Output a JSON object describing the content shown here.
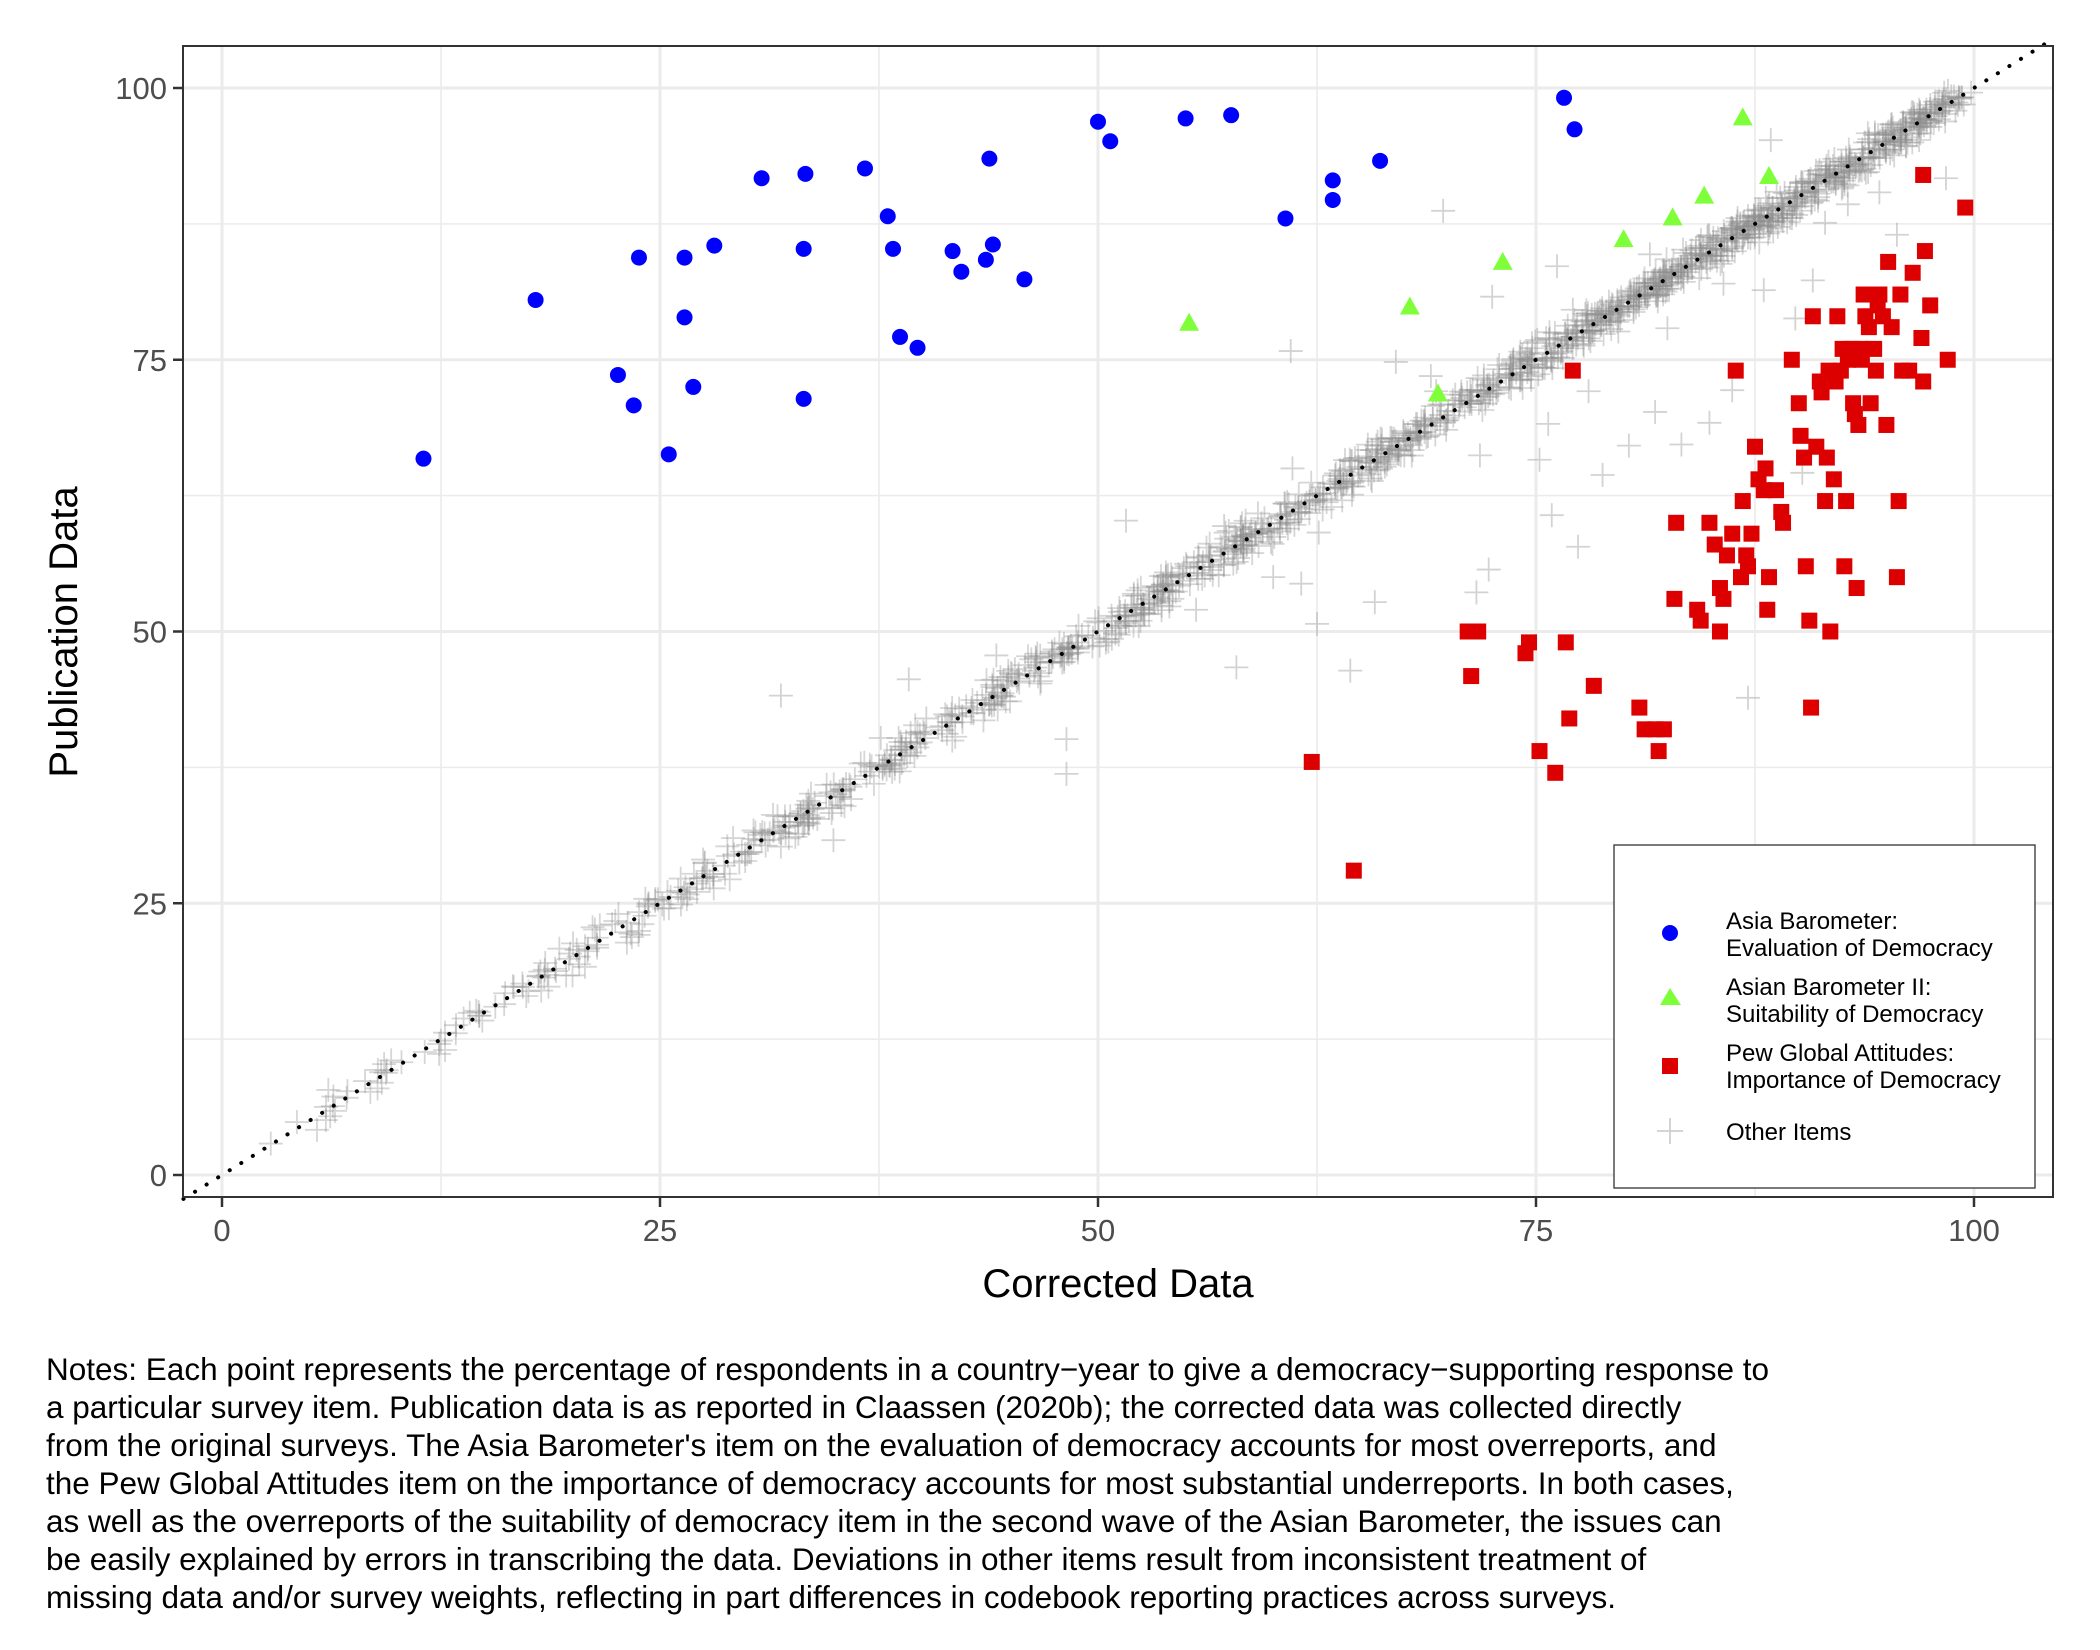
{
  "chart_data": {
    "type": "scatter",
    "title": "",
    "xlabel": "Corrected Data",
    "ylabel": "Publication Data",
    "xlim": [
      -2.2,
      104.5
    ],
    "ylim": [
      -2.0,
      103.9
    ],
    "x_ticks": [
      0,
      25,
      50,
      75,
      100
    ],
    "y_ticks": [
      0,
      25,
      50,
      75,
      100
    ],
    "x_tick_labels": [
      "0",
      "25",
      "50",
      "75",
      "100"
    ],
    "y_tick_labels": [
      "0",
      "25",
      "50",
      "75",
      "100"
    ],
    "grid": true,
    "reference_line": {
      "type": "identity",
      "style": "dotted",
      "color": "#000000"
    },
    "legend": {
      "placement": "bottom-right",
      "entries": [
        {
          "label_line1": "Asia Barometer:",
          "label_line2": "Evaluation of Democracy",
          "marker": "circle",
          "color": "#0000ff"
        },
        {
          "label_line1": "Asian Barometer II:",
          "label_line2": "Suitability of Democracy",
          "marker": "triangle",
          "color": "#7fff3a"
        },
        {
          "label_line1": "Pew Global Attitudes:",
          "label_line2": "Importance of Democracy",
          "marker": "square",
          "color": "#dd0000"
        },
        {
          "label_line1": "Other Items",
          "label_line2": "",
          "marker": "plus",
          "color": "#9e9e9e"
        }
      ]
    },
    "series": [
      {
        "name": "Asia Barometer: Evaluation of Democracy",
        "marker": "circle",
        "color": "#0000ff",
        "points": [
          [
            11.5,
            65.9
          ],
          [
            17.9,
            80.5
          ],
          [
            22.6,
            73.6
          ],
          [
            23.5,
            70.8
          ],
          [
            23.8,
            84.4
          ],
          [
            25.5,
            66.3
          ],
          [
            26.4,
            84.4
          ],
          [
            26.4,
            78.9
          ],
          [
            26.9,
            72.5
          ],
          [
            28.1,
            85.5
          ],
          [
            30.8,
            91.7
          ],
          [
            33.3,
            92.1
          ],
          [
            33.2,
            85.2
          ],
          [
            33.2,
            71.4
          ],
          [
            36.7,
            92.6
          ],
          [
            38.0,
            88.2
          ],
          [
            38.3,
            85.2
          ],
          [
            38.7,
            77.1
          ],
          [
            39.7,
            76.1
          ],
          [
            41.7,
            85.0
          ],
          [
            42.2,
            83.1
          ],
          [
            43.6,
            84.2
          ],
          [
            43.8,
            93.5
          ],
          [
            44.0,
            85.6
          ],
          [
            45.8,
            82.4
          ],
          [
            50.0,
            96.9
          ],
          [
            50.7,
            95.1
          ],
          [
            55.0,
            97.2
          ],
          [
            57.6,
            97.5
          ],
          [
            60.7,
            88.0
          ],
          [
            63.4,
            89.7
          ],
          [
            63.4,
            91.5
          ],
          [
            66.1,
            93.3
          ],
          [
            76.6,
            99.1
          ],
          [
            77.2,
            96.2
          ]
        ]
      },
      {
        "name": "Asian Barometer II: Suitability of Democracy",
        "marker": "triangle",
        "color": "#7fff3a",
        "points": [
          [
            55.2,
            78.4
          ],
          [
            67.8,
            79.9
          ],
          [
            69.4,
            71.9
          ],
          [
            73.1,
            84.0
          ],
          [
            80.0,
            86.1
          ],
          [
            82.8,
            88.1
          ],
          [
            84.6,
            90.1
          ],
          [
            86.8,
            97.3
          ],
          [
            88.3,
            91.9
          ]
        ]
      },
      {
        "name": "Pew Global Attitudes: Importance of Democracy",
        "marker": "square",
        "color": "#dd0000",
        "points": [
          [
            62.2,
            38.0
          ],
          [
            64.6,
            28.0
          ],
          [
            71.1,
            50.0
          ],
          [
            71.3,
            45.9
          ],
          [
            71.7,
            50.0
          ],
          [
            74.4,
            48.0
          ],
          [
            74.6,
            49.0
          ],
          [
            75.2,
            39.0
          ],
          [
            76.1,
            37.0
          ],
          [
            76.7,
            49.0
          ],
          [
            76.9,
            42.0
          ],
          [
            77.1,
            74.0
          ],
          [
            78.3,
            45.0
          ],
          [
            80.9,
            43.0
          ],
          [
            81.2,
            41.0
          ],
          [
            81.8,
            41.0
          ],
          [
            82.0,
            39.0
          ],
          [
            82.3,
            41.0
          ],
          [
            82.9,
            53.0
          ],
          [
            83.0,
            60.0
          ],
          [
            84.2,
            52.0
          ],
          [
            84.4,
            51.0
          ],
          [
            84.9,
            60.0
          ],
          [
            85.2,
            58.0
          ],
          [
            85.5,
            54.0
          ],
          [
            85.5,
            50.0
          ],
          [
            85.7,
            53.0
          ],
          [
            85.9,
            57.0
          ],
          [
            86.2,
            59.0
          ],
          [
            86.4,
            74.0
          ],
          [
            86.7,
            55.0
          ],
          [
            86.8,
            62.0
          ],
          [
            87.0,
            57.0
          ],
          [
            87.1,
            56.0
          ],
          [
            87.3,
            59.0
          ],
          [
            87.5,
            67.0
          ],
          [
            87.7,
            64.0
          ],
          [
            88.0,
            63.0
          ],
          [
            88.1,
            65.0
          ],
          [
            88.2,
            52.0
          ],
          [
            88.3,
            55.0
          ],
          [
            88.7,
            63.0
          ],
          [
            89.0,
            61.0
          ],
          [
            89.1,
            60.0
          ],
          [
            89.6,
            75.0
          ],
          [
            90.0,
            71.0
          ],
          [
            90.1,
            68.0
          ],
          [
            90.3,
            66.0
          ],
          [
            90.4,
            56.0
          ],
          [
            90.6,
            51.0
          ],
          [
            90.7,
            43.0
          ],
          [
            90.8,
            79.0
          ],
          [
            91.0,
            67.0
          ],
          [
            91.2,
            73.0
          ],
          [
            91.3,
            72.0
          ],
          [
            91.5,
            62.0
          ],
          [
            91.6,
            66.0
          ],
          [
            91.7,
            74.0
          ],
          [
            91.8,
            50.0
          ],
          [
            92.0,
            64.0
          ],
          [
            92.1,
            73.0
          ],
          [
            92.2,
            79.0
          ],
          [
            92.4,
            74.0
          ],
          [
            92.5,
            76.0
          ],
          [
            92.6,
            56.0
          ],
          [
            92.7,
            62.0
          ],
          [
            92.8,
            75.0
          ],
          [
            93.0,
            76.0
          ],
          [
            93.1,
            71.0
          ],
          [
            93.2,
            70.0
          ],
          [
            93.3,
            54.0
          ],
          [
            93.4,
            69.0
          ],
          [
            93.5,
            76.0
          ],
          [
            93.6,
            75.0
          ],
          [
            93.7,
            81.0
          ],
          [
            93.8,
            79.0
          ],
          [
            94.0,
            78.0
          ],
          [
            94.1,
            71.0
          ],
          [
            94.3,
            76.0
          ],
          [
            94.4,
            74.0
          ],
          [
            94.5,
            80.0
          ],
          [
            94.6,
            81.0
          ],
          [
            94.8,
            79.0
          ],
          [
            95.0,
            69.0
          ],
          [
            95.1,
            84.0
          ],
          [
            95.3,
            78.0
          ],
          [
            95.6,
            55.0
          ],
          [
            95.7,
            62.0
          ],
          [
            95.8,
            81.0
          ],
          [
            95.9,
            74.0
          ],
          [
            96.3,
            74.0
          ],
          [
            96.5,
            83.0
          ],
          [
            97.0,
            77.0
          ],
          [
            97.1,
            73.0
          ],
          [
            97.2,
            85.0
          ],
          [
            97.1,
            92.0
          ],
          [
            97.5,
            80.0
          ],
          [
            98.5,
            75.0
          ],
          [
            99.5,
            89.0
          ]
        ]
      },
      {
        "name": "Other Items",
        "marker": "plus",
        "color": "#9e9e9e",
        "points_description": "~1400 points concentrated tightly along the identity line (y = x) from about 2 to 99, with scattered outliers",
        "outliers": [
          [
            31.9,
            44.1
          ],
          [
            34.9,
            30.8
          ],
          [
            37.6,
            40.2
          ],
          [
            39.2,
            45.6
          ],
          [
            40.2,
            42.0
          ],
          [
            44.2,
            47.8
          ],
          [
            48.2,
            40.1
          ],
          [
            48.2,
            36.9
          ],
          [
            51.6,
            60.2
          ],
          [
            55.6,
            52.0
          ],
          [
            57.2,
            59.7
          ],
          [
            57.9,
            46.7
          ],
          [
            60.0,
            55.0
          ],
          [
            61.0,
            75.8
          ],
          [
            61.1,
            65.0
          ],
          [
            61.6,
            54.4
          ],
          [
            62.5,
            50.7
          ],
          [
            62.6,
            59.1
          ],
          [
            64.4,
            46.4
          ],
          [
            65.8,
            52.7
          ],
          [
            67.0,
            74.8
          ],
          [
            68.1,
            68.3
          ],
          [
            69.0,
            73.5
          ],
          [
            69.3,
            72.1
          ],
          [
            69.7,
            88.7
          ],
          [
            71.6,
            53.6
          ],
          [
            71.8,
            66.2
          ],
          [
            72.3,
            55.7
          ],
          [
            72.5,
            80.8
          ],
          [
            75.2,
            65.8
          ],
          [
            75.7,
            69.1
          ],
          [
            75.9,
            60.7
          ],
          [
            76.2,
            83.6
          ],
          [
            77.1,
            79.6
          ],
          [
            77.4,
            57.8
          ],
          [
            78.0,
            72.1
          ],
          [
            78.8,
            64.4
          ],
          [
            79.7,
            77.6
          ],
          [
            80.3,
            67.1
          ],
          [
            81.5,
            84.7
          ],
          [
            81.8,
            70.2
          ],
          [
            82.5,
            77.9
          ],
          [
            83.3,
            67.2
          ],
          [
            83.9,
            83.6
          ],
          [
            84.9,
            69.2
          ],
          [
            85.7,
            82.0
          ],
          [
            86.2,
            72.2
          ],
          [
            87.1,
            43.9
          ],
          [
            88.0,
            81.4
          ],
          [
            88.4,
            95.2
          ],
          [
            89.8,
            78.8
          ],
          [
            90.2,
            64.6
          ],
          [
            90.8,
            82.3
          ],
          [
            91.5,
            87.6
          ],
          [
            92.8,
            89.3
          ],
          [
            93.5,
            92.5
          ],
          [
            94.6,
            90.4
          ],
          [
            95.6,
            86.5
          ],
          [
            98.4,
            91.7
          ]
        ]
      }
    ]
  },
  "notes": {
    "lines": [
      "Notes: Each point represents the percentage of respondents in a country−year to give a democracy−supporting response to",
      "a particular survey item. Publication data is as reported in Claassen (2020b); the corrected data was collected directly",
      "from the original surveys. The Asia Barometer's item on the evaluation of democracy accounts for most overreports, and",
      "the Pew Global Attitudes item on the importance of democracy accounts for most substantial underreports. In both cases,",
      "as well as the overreports of the suitability of democracy item in the second wave of the Asian Barometer, the issues can",
      "be easily explained by errors in transcribing the data. Deviations in other items result from inconsistent treatment of",
      "missing data and/or survey weights, reflecting in part differences in codebook reporting practices across surveys."
    ]
  }
}
